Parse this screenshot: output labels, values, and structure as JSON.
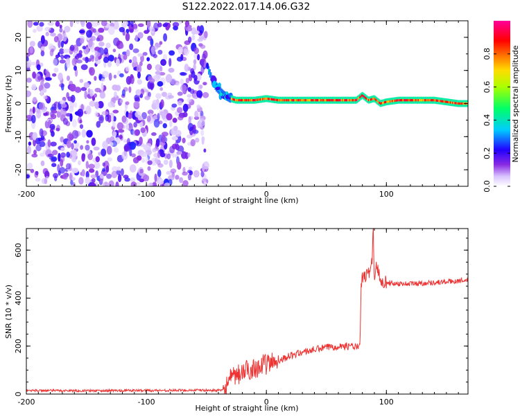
{
  "page_title": "S122.2022.017.14.06.G32",
  "chart_data": [
    {
      "type": "heatmap",
      "xlabel": "Height of straight line (km)",
      "ylabel": "Frequency (Hz)",
      "xlim": [
        -200,
        168
      ],
      "ylim": [
        -25,
        25
      ],
      "x_ticks": [
        -200,
        -100,
        0,
        100
      ],
      "y_ticks": [
        -20,
        -10,
        0,
        10,
        20
      ],
      "colorbar": {
        "label": "Normalized spectral amplitude",
        "range": [
          0,
          1
        ],
        "ticks": [
          0.0,
          0.2,
          0.4,
          0.6,
          0.8
        ],
        "colors": [
          "#ffffff",
          "#b388ff",
          "#7b00ff",
          "#0000ff",
          "#00ffff",
          "#00ff00",
          "#ffff00",
          "#ff8000",
          "#ff0000",
          "#ff0080"
        ]
      },
      "regions": [
        {
          "x_range": [
            -200,
            -50
          ],
          "frequency_range": [
            -25,
            25
          ],
          "pattern": "scattered noise",
          "amplitude_range": [
            0.0,
            0.2
          ]
        },
        {
          "x_range": [
            -50,
            -30
          ],
          "frequency_range": [
            0,
            10
          ],
          "pattern": "signal descending toward 0 Hz",
          "amplitude_range": [
            0.1,
            0.4
          ]
        },
        {
          "x_range": [
            -30,
            168
          ],
          "frequency_range": [
            -1,
            2
          ],
          "pattern": "narrow band near 1 Hz",
          "amplitude_range": [
            0.4,
            1.0
          ]
        }
      ],
      "track": {
        "x": [
          -48,
          -45,
          -42,
          -38,
          -35,
          -30,
          -25,
          -20,
          -10,
          0,
          10,
          20,
          40,
          60,
          75,
          80,
          85,
          90,
          95,
          100,
          110,
          120,
          140,
          150,
          160,
          168
        ],
        "frequency": [
          10,
          7,
          5,
          3.5,
          2.5,
          1.5,
          1,
          1,
          1,
          1.5,
          1,
          1,
          1,
          1,
          1,
          2.5,
          1,
          1.5,
          0,
          0.5,
          1,
          1,
          1,
          0.5,
          0,
          0
        ]
      }
    },
    {
      "type": "line",
      "xlabel": "Height of straight line (km)",
      "ylabel": "SNR (10 * v/v)",
      "xlim": [
        -200,
        168
      ],
      "ylim": [
        0,
        690
      ],
      "x_ticks": [
        -200,
        -100,
        0,
        100
      ],
      "y_ticks": [
        0,
        200,
        400,
        600
      ],
      "series": [
        {
          "color": "#ee3333",
          "x": [
            -200,
            -150,
            -100,
            -60,
            -36,
            -30,
            -20,
            -10,
            0,
            10,
            20,
            30,
            40,
            50,
            60,
            70,
            78,
            79,
            80,
            85,
            88,
            89,
            90,
            92,
            95,
            100,
            110,
            120,
            130,
            140,
            150,
            160,
            168
          ],
          "y": [
            15,
            14,
            15,
            16,
            15,
            60,
            90,
            110,
            125,
            140,
            160,
            175,
            185,
            195,
            200,
            200,
            195,
            470,
            480,
            500,
            560,
            690,
            480,
            540,
            480,
            465,
            460,
            460,
            462,
            465,
            468,
            472,
            475
          ]
        }
      ]
    }
  ]
}
